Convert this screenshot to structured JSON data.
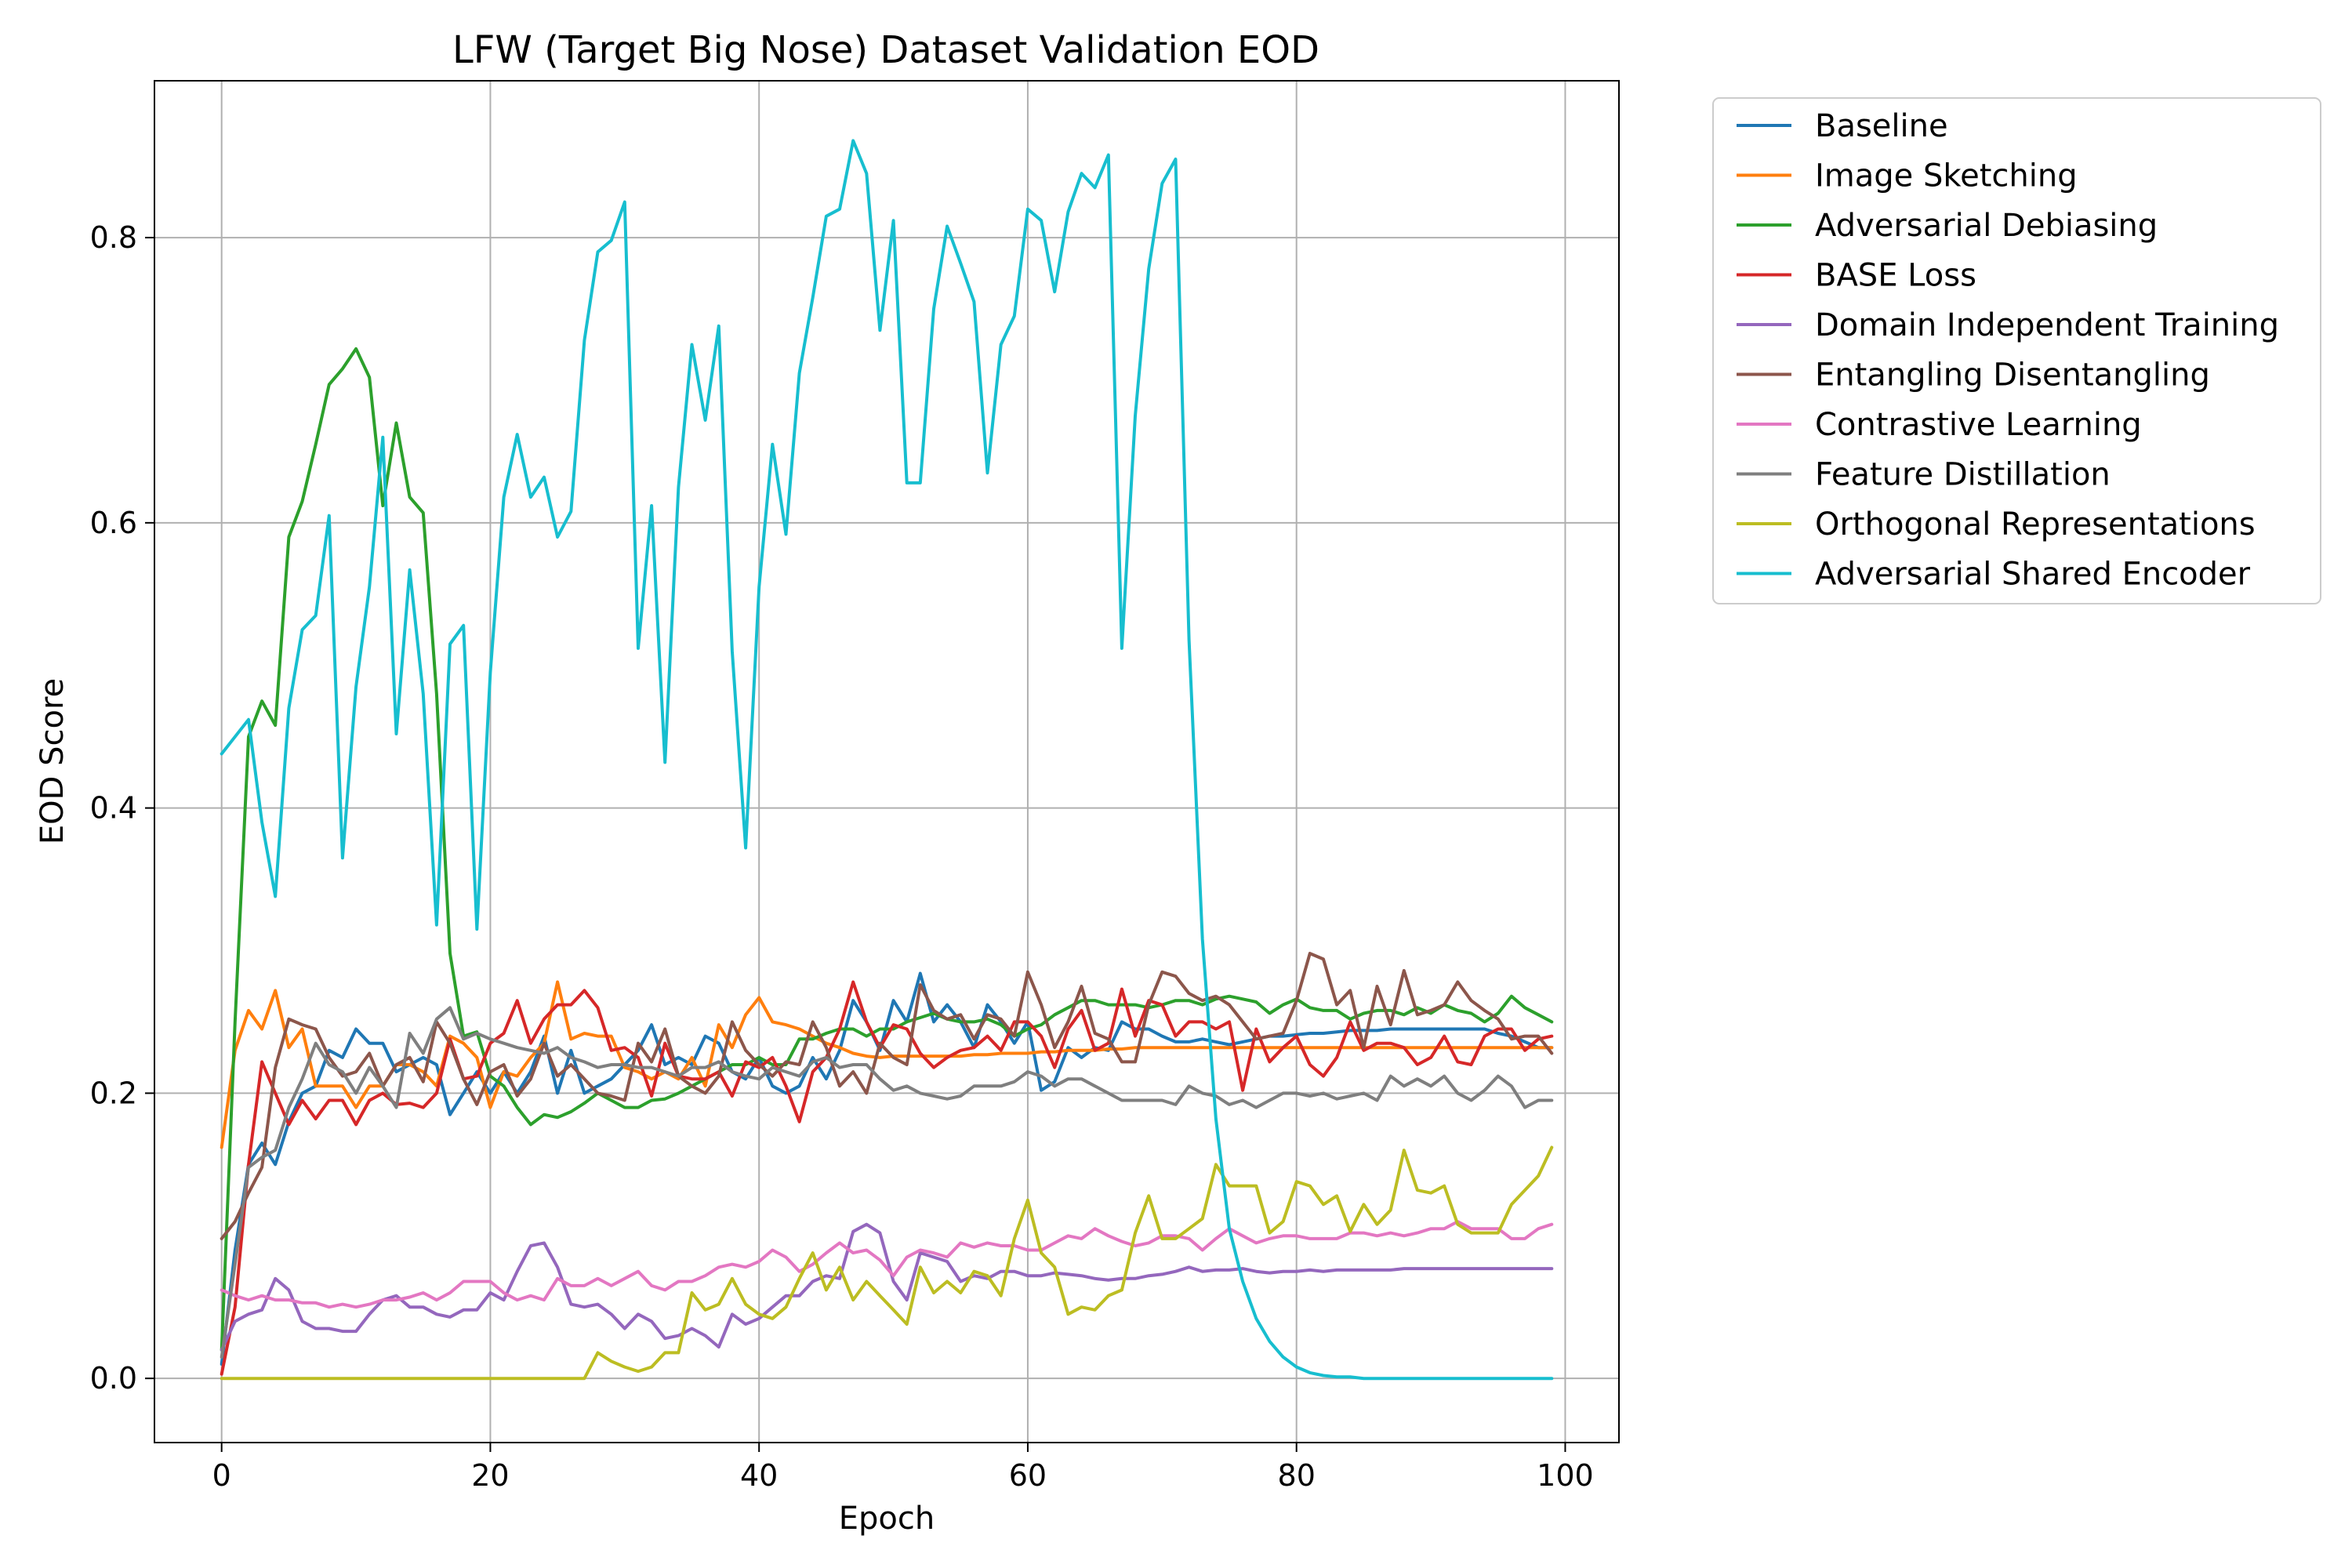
{
  "chart_data": {
    "type": "line",
    "title": "LFW (Target Big Nose) Dataset Validation EOD",
    "xlabel": "Epoch",
    "ylabel": "EOD Score",
    "xlim": [
      -5,
      104
    ],
    "ylim": [
      -0.045,
      0.91
    ],
    "xticks": [
      0,
      20,
      40,
      60,
      80,
      100
    ],
    "yticks": [
      0.0,
      0.2,
      0.4,
      0.6,
      0.8
    ],
    "xtick_labels": [
      "0",
      "20",
      "40",
      "60",
      "80",
      "100"
    ],
    "ytick_labels": [
      "0.0",
      "0.2",
      "0.4",
      "0.6",
      "0.8"
    ],
    "grid": true,
    "legend_position": "outside-upper-right",
    "x": [
      0,
      1,
      2,
      3,
      4,
      5,
      6,
      7,
      8,
      9,
      10,
      11,
      12,
      13,
      14,
      15,
      16,
      17,
      18,
      19,
      20,
      21,
      22,
      23,
      24,
      25,
      26,
      27,
      28,
      29,
      30,
      31,
      32,
      33,
      34,
      35,
      36,
      37,
      38,
      39,
      40,
      41,
      42,
      43,
      44,
      45,
      46,
      47,
      48,
      49,
      50,
      51,
      52,
      53,
      54,
      55,
      56,
      57,
      58,
      59,
      60,
      61,
      62,
      63,
      64,
      65,
      66,
      67,
      68,
      69,
      70,
      71,
      72,
      73,
      74,
      75,
      76,
      77,
      78,
      79,
      80,
      81,
      82,
      83,
      84,
      85,
      86,
      87,
      88,
      89,
      90,
      91,
      92,
      93,
      94,
      95,
      96,
      97,
      98,
      99
    ],
    "series": [
      {
        "name": "Baseline",
        "color": "#1f77b4",
        "values": [
          0.01,
          0.09,
          0.15,
          0.165,
          0.15,
          0.18,
          0.2,
          0.205,
          0.23,
          0.225,
          0.245,
          0.235,
          0.235,
          0.215,
          0.22,
          0.225,
          0.22,
          0.185,
          0.2,
          0.215,
          0.2,
          0.215,
          0.2,
          0.215,
          0.24,
          0.2,
          0.23,
          0.2,
          0.205,
          0.21,
          0.22,
          0.23,
          0.248,
          0.22,
          0.225,
          0.22,
          0.24,
          0.235,
          0.215,
          0.21,
          0.225,
          0.205,
          0.2,
          0.205,
          0.225,
          0.21,
          0.23,
          0.265,
          0.25,
          0.23,
          0.265,
          0.25,
          0.284,
          0.25,
          0.262,
          0.25,
          0.232,
          0.262,
          0.25,
          0.235,
          0.25,
          0.202,
          0.208,
          0.232,
          0.225,
          0.232,
          0.23,
          0.25,
          0.245,
          0.245,
          0.24,
          0.236,
          0.236,
          0.238,
          0.236,
          0.234,
          0.236,
          0.238,
          0.24,
          0.24,
          0.241,
          0.242,
          0.242,
          0.243,
          0.244,
          0.244,
          0.244,
          0.245,
          0.245,
          0.245,
          0.245,
          0.245,
          0.245,
          0.245,
          0.245,
          0.242,
          0.24,
          0.236,
          0.232,
          0.232
        ]
      },
      {
        "name": "Image Sketching",
        "color": "#ff7f0e",
        "values": [
          0.162,
          0.23,
          0.258,
          0.245,
          0.272,
          0.232,
          0.245,
          0.205,
          0.205,
          0.205,
          0.19,
          0.205,
          0.205,
          0.22,
          0.22,
          0.215,
          0.205,
          0.24,
          0.235,
          0.225,
          0.19,
          0.215,
          0.212,
          0.225,
          0.235,
          0.278,
          0.238,
          0.242,
          0.24,
          0.24,
          0.218,
          0.215,
          0.21,
          0.215,
          0.21,
          0.225,
          0.205,
          0.248,
          0.232,
          0.255,
          0.267,
          0.25,
          0.248,
          0.245,
          0.24,
          0.235,
          0.232,
          0.228,
          0.226,
          0.225,
          0.226,
          0.226,
          0.226,
          0.226,
          0.226,
          0.226,
          0.227,
          0.227,
          0.228,
          0.228,
          0.228,
          0.229,
          0.229,
          0.23,
          0.23,
          0.23,
          0.231,
          0.231,
          0.232,
          0.232,
          0.232,
          0.232,
          0.232,
          0.232,
          0.232,
          0.232,
          0.232,
          0.232,
          0.232,
          0.232,
          0.232,
          0.232,
          0.232,
          0.232,
          0.232,
          0.232,
          0.232,
          0.232,
          0.232,
          0.232,
          0.232,
          0.232,
          0.232,
          0.232,
          0.232,
          0.232,
          0.232,
          0.232,
          0.232,
          0.232
        ]
      },
      {
        "name": "Adversarial Debiasing",
        "color": "#2ca02c",
        "values": [
          0.02,
          0.25,
          0.45,
          0.475,
          0.458,
          0.59,
          0.615,
          0.655,
          0.697,
          0.708,
          0.722,
          0.702,
          0.612,
          0.67,
          0.618,
          0.607,
          0.48,
          0.298,
          0.24,
          0.243,
          0.212,
          0.205,
          0.19,
          0.178,
          0.185,
          0.183,
          0.187,
          0.193,
          0.2,
          0.195,
          0.19,
          0.19,
          0.195,
          0.196,
          0.2,
          0.205,
          0.21,
          0.215,
          0.22,
          0.22,
          0.225,
          0.22,
          0.22,
          0.238,
          0.238,
          0.242,
          0.245,
          0.245,
          0.24,
          0.245,
          0.245,
          0.25,
          0.253,
          0.256,
          0.252,
          0.25,
          0.25,
          0.252,
          0.248,
          0.24,
          0.245,
          0.248,
          0.255,
          0.26,
          0.265,
          0.265,
          0.262,
          0.262,
          0.262,
          0.26,
          0.262,
          0.265,
          0.265,
          0.262,
          0.266,
          0.268,
          0.266,
          0.264,
          0.256,
          0.262,
          0.266,
          0.26,
          0.258,
          0.258,
          0.252,
          0.256,
          0.258,
          0.258,
          0.255,
          0.26,
          0.256,
          0.262,
          0.258,
          0.256,
          0.25,
          0.256,
          0.268,
          0.26,
          0.255,
          0.25
        ]
      },
      {
        "name": "BASE Loss",
        "color": "#d62728",
        "values": [
          0.003,
          0.05,
          0.15,
          0.222,
          0.2,
          0.178,
          0.195,
          0.182,
          0.195,
          0.195,
          0.178,
          0.195,
          0.2,
          0.192,
          0.193,
          0.19,
          0.2,
          0.238,
          0.21,
          0.212,
          0.235,
          0.242,
          0.265,
          0.235,
          0.252,
          0.262,
          0.262,
          0.272,
          0.26,
          0.23,
          0.232,
          0.225,
          0.198,
          0.235,
          0.212,
          0.21,
          0.21,
          0.215,
          0.198,
          0.222,
          0.218,
          0.225,
          0.205,
          0.18,
          0.215,
          0.225,
          0.245,
          0.278,
          0.25,
          0.232,
          0.248,
          0.245,
          0.228,
          0.218,
          0.225,
          0.23,
          0.232,
          0.24,
          0.23,
          0.25,
          0.25,
          0.24,
          0.218,
          0.245,
          0.258,
          0.23,
          0.235,
          0.273,
          0.24,
          0.265,
          0.262,
          0.24,
          0.25,
          0.25,
          0.245,
          0.25,
          0.202,
          0.245,
          0.222,
          0.232,
          0.24,
          0.22,
          0.212,
          0.225,
          0.25,
          0.23,
          0.235,
          0.235,
          0.232,
          0.22,
          0.225,
          0.24,
          0.222,
          0.22,
          0.24,
          0.245,
          0.245,
          0.23,
          0.238,
          0.24
        ]
      },
      {
        "name": "Domain Independent Training",
        "color": "#9467bd",
        "values": [
          0.02,
          0.04,
          0.045,
          0.048,
          0.07,
          0.062,
          0.04,
          0.035,
          0.035,
          0.033,
          0.033,
          0.045,
          0.055,
          0.058,
          0.05,
          0.05,
          0.045,
          0.043,
          0.048,
          0.048,
          0.06,
          0.055,
          0.075,
          0.093,
          0.095,
          0.078,
          0.052,
          0.05,
          0.052,
          0.045,
          0.035,
          0.045,
          0.04,
          0.028,
          0.03,
          0.035,
          0.03,
          0.022,
          0.045,
          0.038,
          0.042,
          0.05,
          0.058,
          0.058,
          0.068,
          0.072,
          0.07,
          0.103,
          0.108,
          0.102,
          0.068,
          0.055,
          0.088,
          0.085,
          0.082,
          0.068,
          0.072,
          0.07,
          0.075,
          0.075,
          0.072,
          0.072,
          0.074,
          0.073,
          0.072,
          0.07,
          0.069,
          0.07,
          0.07,
          0.072,
          0.073,
          0.075,
          0.078,
          0.075,
          0.076,
          0.076,
          0.077,
          0.075,
          0.074,
          0.075,
          0.075,
          0.076,
          0.075,
          0.076,
          0.076,
          0.076,
          0.076,
          0.076,
          0.077,
          0.077,
          0.077,
          0.077,
          0.077,
          0.077,
          0.077,
          0.077,
          0.077,
          0.077,
          0.077,
          0.077
        ]
      },
      {
        "name": "Entangling Disentangling",
        "color": "#8c564b",
        "values": [
          0.098,
          0.11,
          0.13,
          0.148,
          0.218,
          0.252,
          0.248,
          0.245,
          0.225,
          0.212,
          0.215,
          0.228,
          0.205,
          0.22,
          0.225,
          0.208,
          0.25,
          0.235,
          0.21,
          0.192,
          0.215,
          0.22,
          0.198,
          0.21,
          0.235,
          0.212,
          0.22,
          0.21,
          0.2,
          0.198,
          0.195,
          0.235,
          0.222,
          0.245,
          0.212,
          0.205,
          0.2,
          0.212,
          0.25,
          0.23,
          0.22,
          0.212,
          0.222,
          0.22,
          0.25,
          0.232,
          0.205,
          0.215,
          0.2,
          0.235,
          0.225,
          0.22,
          0.276,
          0.258,
          0.252,
          0.255,
          0.238,
          0.255,
          0.252,
          0.24,
          0.285,
          0.262,
          0.232,
          0.25,
          0.275,
          0.242,
          0.238,
          0.222,
          0.222,
          0.262,
          0.285,
          0.282,
          0.27,
          0.265,
          0.268,
          0.262,
          0.25,
          0.238,
          0.24,
          0.242,
          0.265,
          0.298,
          0.294,
          0.262,
          0.272,
          0.232,
          0.275,
          0.248,
          0.286,
          0.255,
          0.258,
          0.262,
          0.278,
          0.265,
          0.258,
          0.252,
          0.238,
          0.24,
          0.24,
          0.228
        ]
      },
      {
        "name": "Contrastive Learning",
        "color": "#e377c2",
        "values": [
          0.062,
          0.058,
          0.055,
          0.058,
          0.055,
          0.055,
          0.053,
          0.053,
          0.05,
          0.052,
          0.05,
          0.052,
          0.055,
          0.055,
          0.057,
          0.06,
          0.055,
          0.06,
          0.068,
          0.068,
          0.068,
          0.06,
          0.055,
          0.058,
          0.055,
          0.07,
          0.065,
          0.065,
          0.07,
          0.065,
          0.07,
          0.075,
          0.065,
          0.062,
          0.068,
          0.068,
          0.072,
          0.078,
          0.08,
          0.078,
          0.082,
          0.09,
          0.085,
          0.075,
          0.08,
          0.088,
          0.095,
          0.088,
          0.09,
          0.083,
          0.072,
          0.085,
          0.09,
          0.088,
          0.085,
          0.095,
          0.092,
          0.095,
          0.093,
          0.093,
          0.09,
          0.09,
          0.095,
          0.1,
          0.098,
          0.105,
          0.1,
          0.096,
          0.093,
          0.095,
          0.1,
          0.1,
          0.098,
          0.09,
          0.098,
          0.105,
          0.1,
          0.095,
          0.098,
          0.1,
          0.1,
          0.098,
          0.098,
          0.098,
          0.102,
          0.102,
          0.1,
          0.102,
          0.1,
          0.102,
          0.105,
          0.105,
          0.11,
          0.105,
          0.105,
          0.105,
          0.098,
          0.098,
          0.105,
          0.108
        ]
      },
      {
        "name": "Feature Distillation",
        "color": "#7f7f7f",
        "values": [
          0.015,
          0.08,
          0.148,
          0.155,
          0.16,
          0.19,
          0.21,
          0.235,
          0.22,
          0.215,
          0.2,
          0.218,
          0.205,
          0.19,
          0.242,
          0.228,
          0.252,
          0.26,
          0.238,
          0.242,
          0.238,
          0.235,
          0.232,
          0.23,
          0.228,
          0.232,
          0.225,
          0.222,
          0.218,
          0.22,
          0.22,
          0.218,
          0.218,
          0.215,
          0.212,
          0.218,
          0.218,
          0.222,
          0.215,
          0.212,
          0.21,
          0.218,
          0.215,
          0.212,
          0.222,
          0.225,
          0.218,
          0.22,
          0.22,
          0.21,
          0.202,
          0.205,
          0.2,
          0.198,
          0.196,
          0.198,
          0.205,
          0.205,
          0.205,
          0.208,
          0.215,
          0.212,
          0.205,
          0.21,
          0.21,
          0.205,
          0.2,
          0.195,
          0.195,
          0.195,
          0.195,
          0.192,
          0.205,
          0.2,
          0.198,
          0.192,
          0.195,
          0.19,
          0.195,
          0.2,
          0.2,
          0.198,
          0.2,
          0.196,
          0.198,
          0.2,
          0.195,
          0.212,
          0.205,
          0.21,
          0.205,
          0.212,
          0.2,
          0.195,
          0.202,
          0.212,
          0.205,
          0.19,
          0.195,
          0.195
        ]
      },
      {
        "name": "Orthogonal Representations",
        "color": "#bcbd22",
        "values": [
          0,
          0,
          0,
          0,
          0,
          0,
          0,
          0,
          0,
          0,
          0,
          0,
          0,
          0,
          0,
          0,
          0,
          0,
          0,
          0,
          0,
          0,
          0,
          0,
          0,
          0,
          0,
          0,
          0.018,
          0.012,
          0.008,
          0.005,
          0.008,
          0.018,
          0.018,
          0.06,
          0.048,
          0.052,
          0.07,
          0.052,
          0.045,
          0.042,
          0.05,
          0.07,
          0.088,
          0.062,
          0.078,
          0.055,
          0.068,
          0.058,
          0.048,
          0.038,
          0.078,
          0.06,
          0.068,
          0.06,
          0.075,
          0.072,
          0.058,
          0.098,
          0.125,
          0.088,
          0.078,
          0.045,
          0.05,
          0.048,
          0.058,
          0.062,
          0.102,
          0.128,
          0.098,
          0.098,
          0.105,
          0.112,
          0.15,
          0.135,
          0.135,
          0.135,
          0.102,
          0.11,
          0.138,
          0.135,
          0.122,
          0.128,
          0.103,
          0.122,
          0.108,
          0.118,
          0.16,
          0.132,
          0.13,
          0.135,
          0.108,
          0.102,
          0.102,
          0.102,
          0.122,
          0.132,
          0.142,
          0.162
        ]
      },
      {
        "name": "Adversarial Shared Encoder",
        "color": "#17becf",
        "values": [
          0.438,
          0.45,
          0.462,
          0.39,
          0.338,
          0.47,
          0.525,
          0.535,
          0.605,
          0.365,
          0.485,
          0.555,
          0.66,
          0.452,
          0.567,
          0.48,
          0.318,
          0.515,
          0.528,
          0.315,
          0.495,
          0.618,
          0.662,
          0.618,
          0.632,
          0.59,
          0.608,
          0.728,
          0.79,
          0.798,
          0.825,
          0.512,
          0.612,
          0.432,
          0.625,
          0.725,
          0.672,
          0.738,
          0.51,
          0.372,
          0.555,
          0.655,
          0.592,
          0.705,
          0.758,
          0.815,
          0.82,
          0.868,
          0.845,
          0.735,
          0.812,
          0.628,
          0.628,
          0.75,
          0.808,
          0.782,
          0.755,
          0.635,
          0.725,
          0.745,
          0.82,
          0.812,
          0.762,
          0.818,
          0.845,
          0.835,
          0.858,
          0.512,
          0.675,
          0.778,
          0.838,
          0.855,
          0.518,
          0.308,
          0.182,
          0.105,
          0.068,
          0.042,
          0.026,
          0.015,
          0.008,
          0.004,
          0.002,
          0.001,
          0.001,
          0,
          0,
          0,
          0,
          0,
          0,
          0,
          0,
          0,
          0,
          0,
          0,
          0,
          0,
          0
        ]
      }
    ]
  }
}
